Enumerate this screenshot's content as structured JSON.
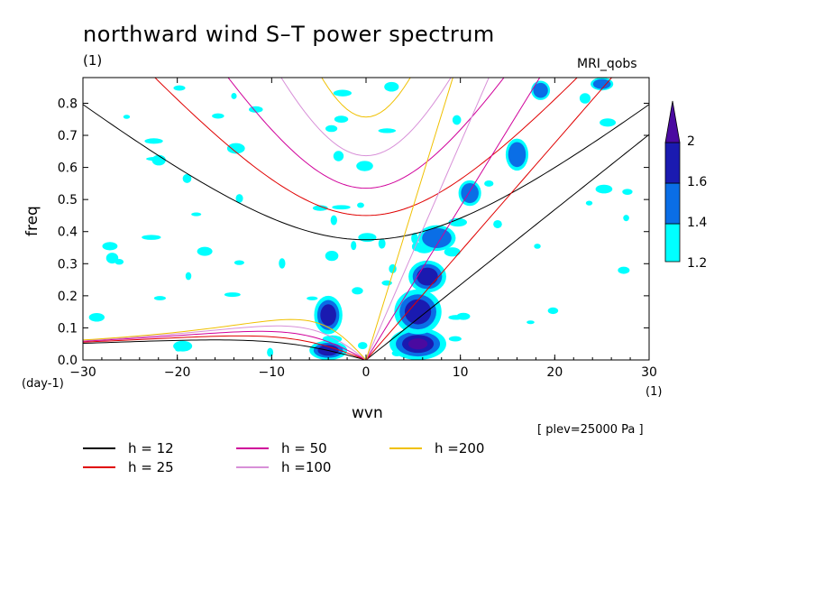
{
  "title": "northward wind S–T power spectrum",
  "units_top": "(1)",
  "model": "MRI_qobs",
  "xlabel": "wvn",
  "ylabel": "freq",
  "x_unit_left": "(day-1)",
  "x_unit_right": "(1)",
  "plev": "[ plev=25000 Pa ]",
  "legend": [
    {
      "label": "h = 12",
      "color": "#000000"
    },
    {
      "label": "h = 25",
      "color": "#e00000"
    },
    {
      "label": "h = 50",
      "color": "#d0009a"
    },
    {
      "label": "h =100",
      "color": "#d890d8"
    },
    {
      "label": "h =200",
      "color": "#f0c000"
    }
  ],
  "colorbar": {
    "levels": [
      "1.2",
      "1.4",
      "1.6",
      "2"
    ],
    "colors": [
      "#00ffff",
      "#0a6ee6",
      "#1a1ab0",
      "#4a0aa0"
    ]
  },
  "chart_data": {
    "type": "heatmap",
    "title": "northward wind S–T power spectrum",
    "xlabel": "wvn",
    "ylabel": "freq",
    "xlim": [
      -30,
      30
    ],
    "ylim": [
      0,
      0.88
    ],
    "xticks": [
      -30,
      -20,
      -10,
      0,
      10,
      20,
      30
    ],
    "yticks": [
      0.0,
      0.1,
      0.2,
      0.3,
      0.4,
      0.5,
      0.6,
      0.7,
      0.8
    ],
    "xticklabels": [
      "−30",
      "−20",
      "−10",
      "0",
      "10",
      "20",
      "30"
    ],
    "yticklabels": [
      "0.0",
      "0.1",
      "0.2",
      "0.3",
      "0.4",
      "0.5",
      "0.6",
      "0.7",
      "0.8"
    ],
    "contour_levels": [
      1.2,
      1.4,
      1.6,
      2.0
    ],
    "dispersion_curves": [
      {
        "h": 12,
        "color": "#000000"
      },
      {
        "h": 25,
        "color": "#e00000"
      },
      {
        "h": 50,
        "color": "#d0009a"
      },
      {
        "h": 100,
        "color": "#d890d8"
      },
      {
        "h": 200,
        "color": "#f0c000"
      }
    ],
    "blobs": [
      {
        "x": 5.5,
        "y": 0.05,
        "rx": 3.0,
        "ry": 0.05,
        "level": 4
      },
      {
        "x": 5.5,
        "y": 0.15,
        "rx": 2.5,
        "ry": 0.07,
        "level": 3
      },
      {
        "x": 6.5,
        "y": 0.26,
        "rx": 2.0,
        "ry": 0.05,
        "level": 3
      },
      {
        "x": 7.5,
        "y": 0.38,
        "rx": 2.0,
        "ry": 0.04,
        "level": 2
      },
      {
        "x": -4.0,
        "y": 0.03,
        "rx": 2.0,
        "ry": 0.03,
        "level": 3
      },
      {
        "x": -4.0,
        "y": 0.14,
        "rx": 1.5,
        "ry": 0.06,
        "level": 3
      },
      {
        "x": 16.0,
        "y": 0.64,
        "rx": 1.2,
        "ry": 0.05,
        "level": 2
      },
      {
        "x": 18.5,
        "y": 0.84,
        "rx": 1.0,
        "ry": 0.03,
        "level": 2
      },
      {
        "x": 25.0,
        "y": 0.86,
        "rx": 1.2,
        "ry": 0.02,
        "level": 2
      },
      {
        "x": 11.0,
        "y": 0.52,
        "rx": 1.2,
        "ry": 0.04,
        "level": 2
      }
    ]
  }
}
